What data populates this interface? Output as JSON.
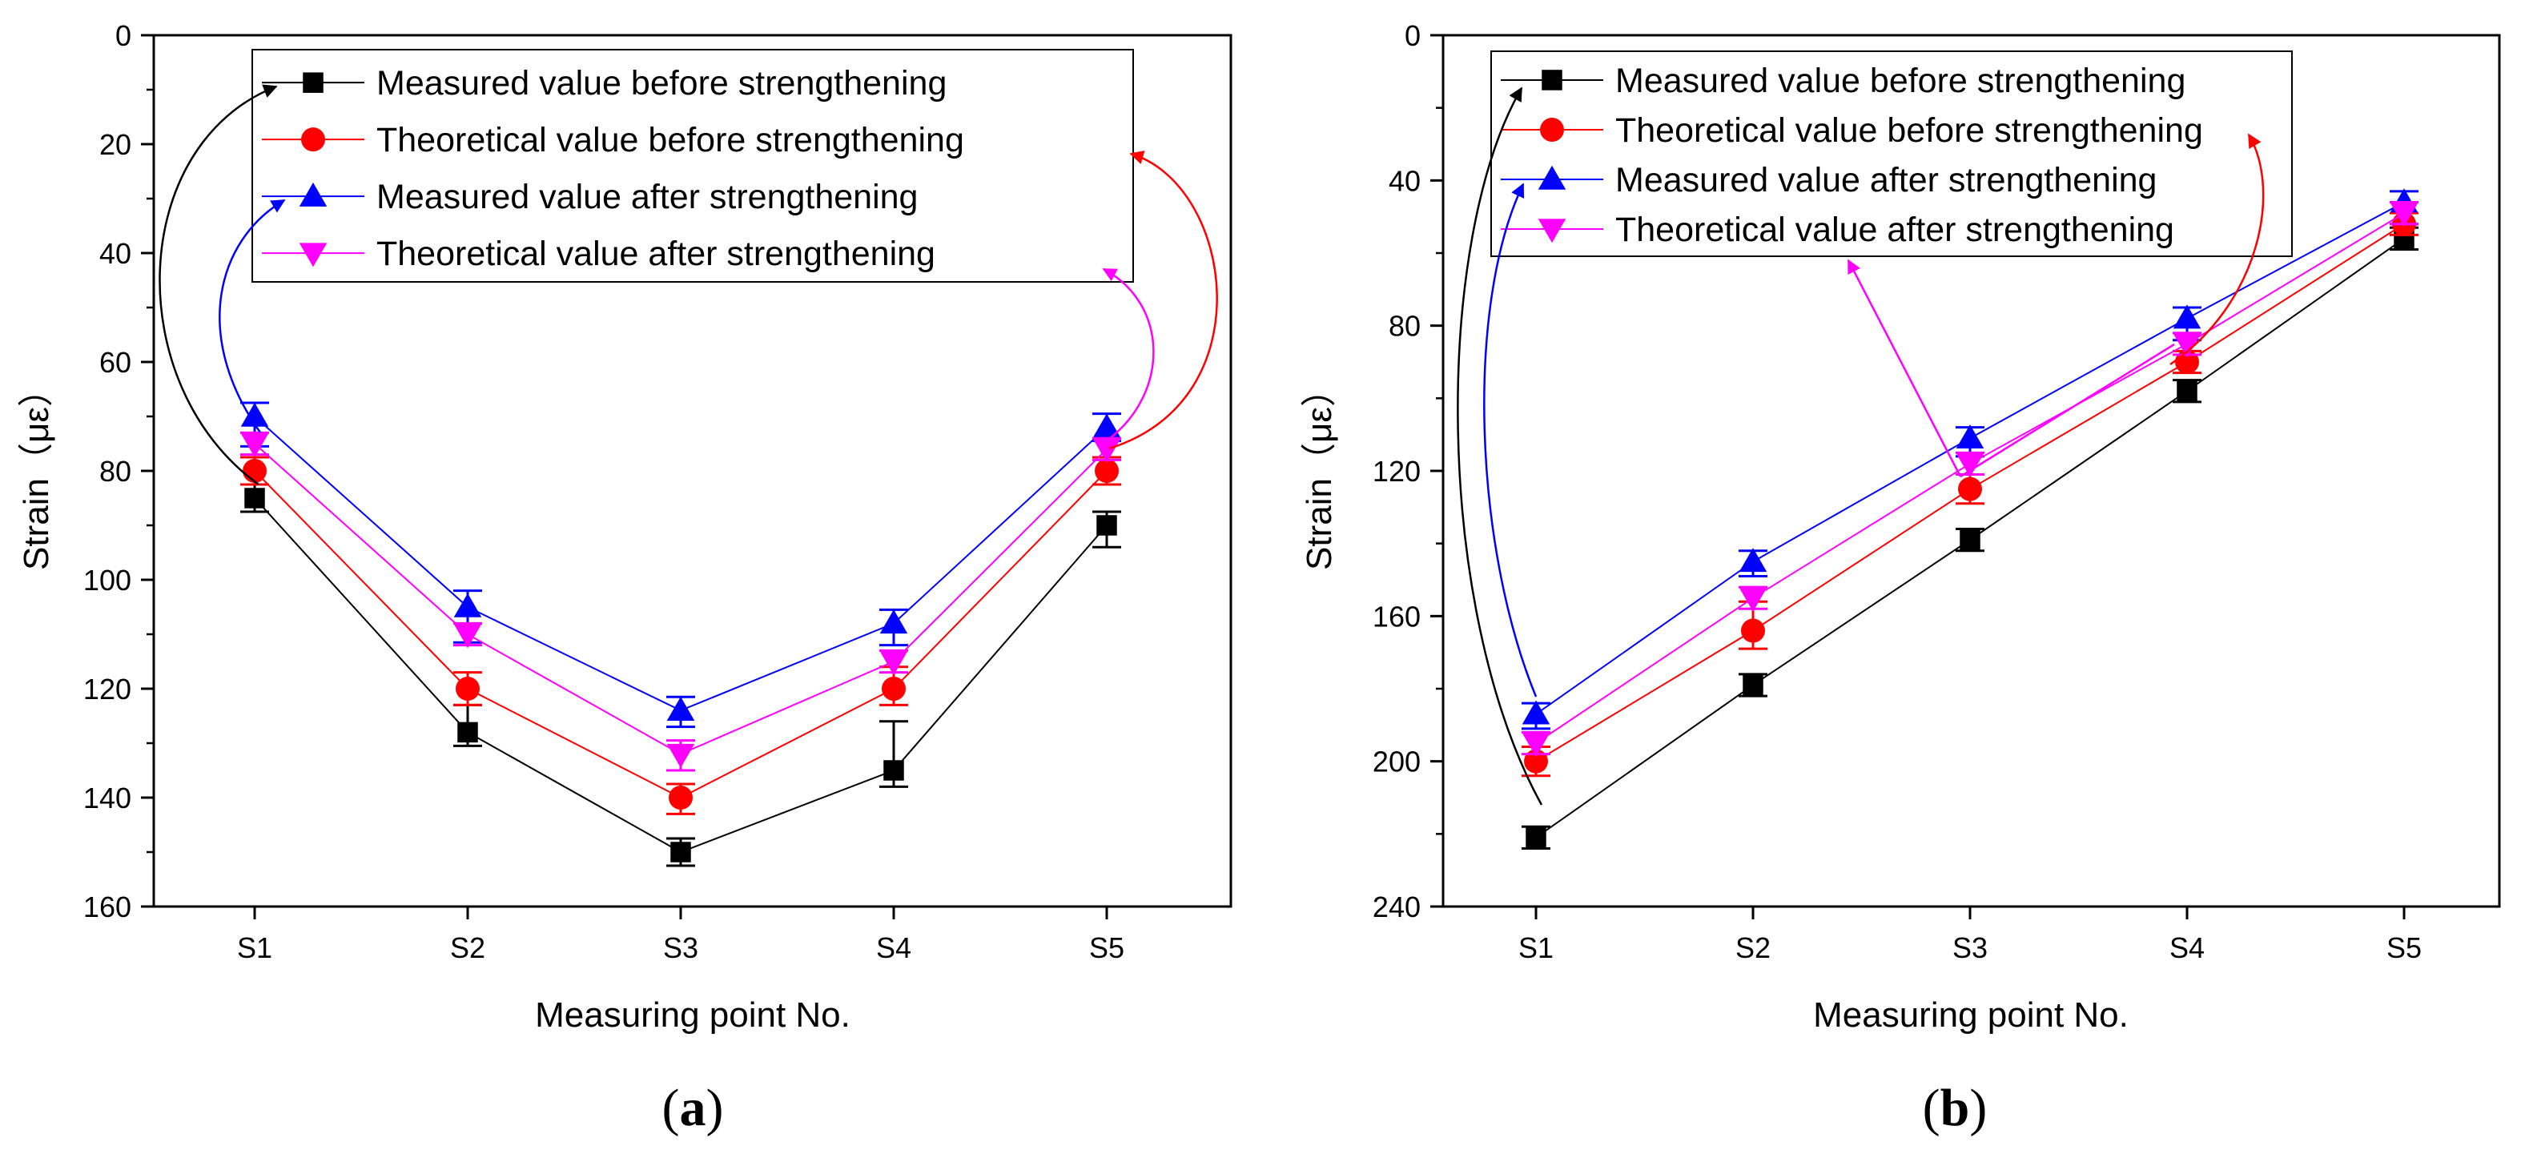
{
  "chart_data": [
    {
      "type": "line",
      "panel_label_open": "(",
      "panel_label": "a",
      "panel_label_close": ")",
      "xlabel": "Measuring point No.",
      "ylabel": "Strain（με）",
      "categories": [
        "S1",
        "S2",
        "S3",
        "S4",
        "S5"
      ],
      "ylim": [
        0,
        160
      ],
      "y_inverted": true,
      "yticks": [
        0,
        20,
        40,
        60,
        80,
        100,
        120,
        140,
        160
      ],
      "legend_position": "top",
      "series": [
        {
          "name": "Measured value before strengthening",
          "color": "#000000",
          "marker": "square",
          "values": [
            85,
            128,
            150,
            135,
            90
          ],
          "err_low": [
            2.5,
            5,
            2.5,
            9,
            2.5
          ],
          "err_high": [
            2.5,
            2.5,
            2.5,
            3,
            4
          ]
        },
        {
          "name": "Theoretical value before strengthening",
          "color": "#ff0000",
          "marker": "circle",
          "values": [
            80,
            120,
            140,
            120,
            80
          ],
          "err_low": [
            2.5,
            3,
            2.5,
            4,
            2.5
          ],
          "err_high": [
            2.5,
            3,
            3,
            3,
            2.5
          ]
        },
        {
          "name": "Measured value after strengthening",
          "color": "#0000ff",
          "marker": "triangle-up",
          "values": [
            70,
            105,
            124,
            108,
            72
          ],
          "err_low": [
            2.5,
            3,
            2.5,
            2.5,
            2.5
          ],
          "err_high": [
            5.5,
            6.5,
            3,
            4,
            2.5
          ]
        },
        {
          "name": "Theoretical value  after strengthening",
          "color": "#ff00ff",
          "marker": "triangle-down",
          "values": [
            75,
            110,
            132,
            115,
            76
          ],
          "err_low": [
            2,
            2,
            2.5,
            2,
            2
          ],
          "err_high": [
            2,
            2,
            3,
            2,
            2
          ]
        }
      ]
    },
    {
      "type": "line",
      "panel_label_open": "(",
      "panel_label": "b",
      "panel_label_close": ")",
      "xlabel": "Measuring point No.",
      "ylabel": "Strain（με）",
      "categories": [
        "S1",
        "S2",
        "S3",
        "S4",
        "S5"
      ],
      "ylim": [
        0,
        240
      ],
      "y_inverted": true,
      "yticks": [
        0,
        40,
        80,
        120,
        160,
        200,
        240
      ],
      "legend_position": "top",
      "series": [
        {
          "name": "Measured value before strengthening",
          "color": "#000000",
          "marker": "square",
          "values": [
            221,
            179,
            139,
            98,
            56
          ],
          "err_low": [
            3,
            3,
            3,
            3,
            3
          ],
          "err_high": [
            3,
            3,
            3,
            3,
            3
          ]
        },
        {
          "name": "Theoretical value before strengthening",
          "color": "#ff0000",
          "marker": "circle",
          "values": [
            200,
            164,
            125,
            90,
            52
          ],
          "err_low": [
            4,
            8,
            4,
            3,
            3
          ],
          "err_high": [
            4,
            5,
            4,
            3,
            3
          ]
        },
        {
          "name": "Measured value after strengthening",
          "color": "#0000ff",
          "marker": "triangle-up",
          "values": [
            187,
            145,
            111,
            78,
            46
          ],
          "err_low": [
            3,
            3,
            3,
            3,
            3
          ],
          "err_high": [
            4,
            4,
            5,
            6,
            6
          ]
        },
        {
          "name": "Theoretical value  after strengthening",
          "color": "#ff00ff",
          "marker": "triangle-down",
          "values": [
            195,
            155,
            118,
            85,
            49
          ],
          "err_low": [
            3,
            3,
            3,
            3,
            3
          ],
          "err_high": [
            3,
            3,
            3,
            3,
            3
          ]
        }
      ]
    }
  ]
}
